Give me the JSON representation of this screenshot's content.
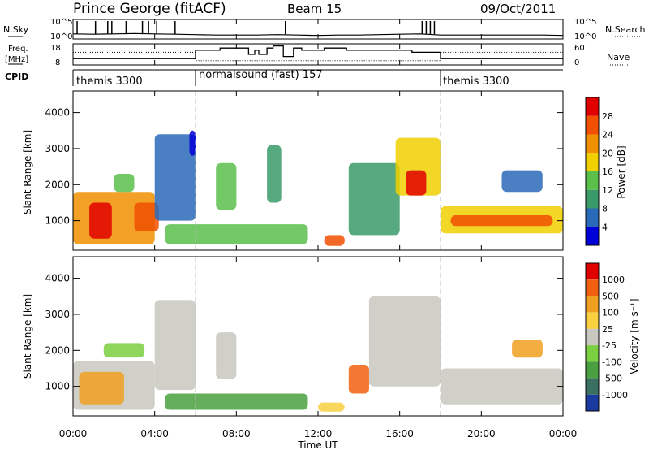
{
  "header": {
    "station": "Prince George (fitACF)",
    "beam": "Beam 15",
    "date": "09/Oct/2011"
  },
  "chart_data": [
    {
      "type": "line",
      "panel": "noise",
      "labels": {
        "left": "N.Sky",
        "right": "N.Search"
      },
      "y_ticks_left": [
        "10^5",
        "10^0"
      ],
      "y_ticks_right": [
        "10^5",
        "10^0"
      ],
      "x": [
        0,
        1,
        2,
        3,
        4,
        5,
        6,
        7,
        8,
        9,
        10,
        11,
        12,
        13,
        14,
        15,
        16,
        17,
        18,
        19,
        20,
        21,
        22,
        23,
        24
      ],
      "series": [
        {
          "values": [
            1.3,
            1.2,
            1.3,
            1.4,
            1.3,
            1.2,
            1.1,
            1.0,
            1.0,
            1.0,
            1.1,
            1.0,
            0.9,
            1.0,
            1.0,
            1.1,
            1.2,
            1.3,
            1.0,
            1.0,
            1.0,
            1.0,
            1.0,
            1.0,
            0.9
          ]
        }
      ],
      "spikes_x": [
        0.2,
        1.1,
        1.7,
        1.9,
        2.6,
        3.4,
        3.7,
        4.1,
        5.0,
        10.4,
        17.1,
        17.3,
        17.5,
        17.7
      ]
    },
    {
      "type": "line",
      "panel": "frequency",
      "labels": {
        "left_top": "Freq.",
        "left_bottom": "[MHz]",
        "right": "Nave",
        "cpid": "CPID"
      },
      "y_ticks_left": [
        "18",
        "8"
      ],
      "y_ticks_right": [
        "60",
        "0"
      ],
      "series": [
        {
          "name": "Freq.",
          "x": [
            0,
            6.0,
            6.0,
            7.2,
            7.2,
            8.6,
            8.6,
            8.9,
            8.9,
            9.1,
            9.1,
            9.5,
            9.5,
            9.8,
            9.8,
            10.3,
            10.3,
            10.8,
            10.8,
            11.2,
            11.2,
            12.3,
            12.3,
            13.4,
            13.4,
            16.6,
            16.6,
            18.0,
            18.0,
            24
          ],
          "values": [
            11,
            11,
            15,
            15,
            16,
            16,
            13,
            13,
            15,
            15,
            13,
            13,
            16,
            16,
            17,
            17,
            12,
            12,
            16,
            16,
            15,
            15,
            16,
            16,
            15,
            15,
            14,
            14,
            11,
            11
          ]
        },
        {
          "name": "Nave",
          "x": [
            0,
            6,
            6,
            18,
            18,
            24
          ],
          "values": [
            14,
            14,
            10,
            10,
            14,
            14
          ]
        }
      ],
      "cpid_segments": [
        {
          "start": 0,
          "end": 6,
          "label": "themis 3300"
        },
        {
          "start": 6,
          "end": 18,
          "label": "normalsound (fast) 157"
        },
        {
          "start": 18,
          "end": 24,
          "label": "themis 3300"
        }
      ]
    },
    {
      "type": "heatmap",
      "panel": "power",
      "ylabel": "Slant Range [km]",
      "ylim": [
        180,
        4600
      ],
      "y_ticks": [
        1000,
        2000,
        3000,
        4000
      ],
      "xlim": [
        0,
        24
      ],
      "colorbar": {
        "label": "Power [dB]",
        "ticks": [
          4,
          8,
          12,
          16,
          20,
          24,
          28
        ],
        "colors": [
          "#0000d8",
          "#2a6ab8",
          "#3a9a6a",
          "#5bc04a",
          "#f0d000",
          "#f09000",
          "#f05000",
          "#e00000"
        ]
      },
      "regions": [
        {
          "t0": 0.0,
          "t1": 4.0,
          "r0": 350,
          "r1": 1800,
          "level": 5
        },
        {
          "t0": 0.8,
          "t1": 1.9,
          "r0": 500,
          "r1": 1500,
          "level": 7
        },
        {
          "t0": 3.0,
          "t1": 4.2,
          "r0": 700,
          "r1": 1500,
          "level": 6
        },
        {
          "t0": 2.0,
          "t1": 3.0,
          "r0": 1800,
          "r1": 2300,
          "level": 3
        },
        {
          "t0": 4.0,
          "t1": 6.0,
          "r0": 1000,
          "r1": 3400,
          "level": 1
        },
        {
          "t0": 5.7,
          "t1": 6.0,
          "r0": 2800,
          "r1": 3500,
          "level": 0
        },
        {
          "t0": 4.5,
          "t1": 11.5,
          "r0": 350,
          "r1": 900,
          "level": 3
        },
        {
          "t0": 7.0,
          "t1": 8.0,
          "r0": 1300,
          "r1": 2600,
          "level": 3
        },
        {
          "t0": 9.5,
          "t1": 10.2,
          "r0": 1500,
          "r1": 3100,
          "level": 2
        },
        {
          "t0": 12.3,
          "t1": 13.3,
          "r0": 300,
          "r1": 600,
          "level": 6
        },
        {
          "t0": 13.5,
          "t1": 16.0,
          "r0": 600,
          "r1": 2600,
          "level": 2
        },
        {
          "t0": 15.8,
          "t1": 18.0,
          "r0": 1700,
          "r1": 3300,
          "level": 4
        },
        {
          "t0": 16.3,
          "t1": 17.3,
          "r0": 1700,
          "r1": 2400,
          "level": 7
        },
        {
          "t0": 18.0,
          "t1": 24.0,
          "r0": 650,
          "r1": 1400,
          "level": 4
        },
        {
          "t0": 18.5,
          "t1": 23.5,
          "r0": 850,
          "r1": 1150,
          "level": 6
        },
        {
          "t0": 21.0,
          "t1": 23.0,
          "r0": 1800,
          "r1": 2400,
          "level": 1
        }
      ],
      "mode_boundaries": [
        6,
        18
      ]
    },
    {
      "type": "heatmap",
      "panel": "velocity",
      "ylabel": "Slant Range [km]",
      "ylim": [
        180,
        4600
      ],
      "y_ticks": [
        1000,
        2000,
        3000,
        4000
      ],
      "xlim": [
        0,
        24
      ],
      "colorbar": {
        "label": "Velocity [m s⁻¹]",
        "ticks": [
          "1000",
          "500",
          "100",
          "25",
          "-25",
          "-100",
          "-500",
          "-1000"
        ],
        "colors": [
          "#1a3aa0",
          "#3a7060",
          "#4aa040",
          "#7ad040",
          "#c8c8c0",
          "#f8d040",
          "#f0a020",
          "#f06010",
          "#e00000"
        ]
      },
      "regions": [
        {
          "t0": 0.0,
          "t1": 4.0,
          "r0": 350,
          "r1": 1700,
          "level": 4
        },
        {
          "t0": 0.3,
          "t1": 2.5,
          "r0": 500,
          "r1": 1400,
          "level": 6
        },
        {
          "t0": 1.5,
          "t1": 3.5,
          "r0": 1800,
          "r1": 2200,
          "level": 3
        },
        {
          "t0": 4.0,
          "t1": 6.0,
          "r0": 900,
          "r1": 3400,
          "level": 4
        },
        {
          "t0": 4.5,
          "t1": 11.5,
          "r0": 350,
          "r1": 800,
          "level": 2
        },
        {
          "t0": 7.0,
          "t1": 8.0,
          "r0": 1200,
          "r1": 2500,
          "level": 4
        },
        {
          "t0": 12.0,
          "t1": 13.3,
          "r0": 300,
          "r1": 550,
          "level": 5
        },
        {
          "t0": 13.5,
          "t1": 14.5,
          "r0": 800,
          "r1": 1600,
          "level": 7
        },
        {
          "t0": 14.5,
          "t1": 18.0,
          "r0": 1000,
          "r1": 3500,
          "level": 4
        },
        {
          "t0": 18.0,
          "t1": 24.0,
          "r0": 500,
          "r1": 1500,
          "level": 4
        },
        {
          "t0": 21.5,
          "t1": 23.0,
          "r0": 1800,
          "r1": 2300,
          "level": 6
        }
      ],
      "mode_boundaries": [
        6,
        18
      ]
    }
  ],
  "x_axis": {
    "ticks": [
      "00:00",
      "04:00",
      "08:00",
      "12:00",
      "16:00",
      "20:00",
      "00:00"
    ],
    "label": "Time UT"
  }
}
